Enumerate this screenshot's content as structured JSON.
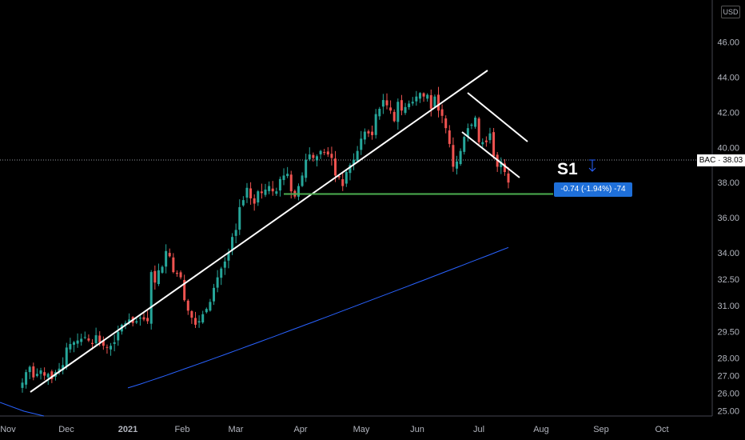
{
  "chart_data": {
    "type": "candlestick",
    "symbol": "BAC",
    "currency": "USD",
    "last_price": 38.03,
    "price_label": "BAC · 38.03",
    "change_label": "-0.74 (-1.94%) -74",
    "support_label": "S1",
    "support_level": 37.35,
    "ylim": [
      25.0,
      48.0
    ],
    "y_ticks": [
      "46.00",
      "44.00",
      "42.00",
      "40.00",
      "38.00",
      "36.00",
      "34.00",
      "32.50",
      "31.00",
      "29.50",
      "28.00",
      "27.00",
      "26.00",
      "25.00"
    ],
    "x_ticks": [
      "Nov",
      "Dec",
      "2021",
      "Feb",
      "Mar",
      "Apr",
      "May",
      "Jun",
      "Jul",
      "Aug",
      "Sep",
      "Oct"
    ],
    "colors": {
      "up": "#26a69a",
      "down": "#ef5350",
      "moving_average": "#2962ff",
      "support_line": "#4caf50",
      "trend_lines": "#ffffff"
    },
    "closes": [
      26.6,
      27.2,
      27.5,
      26.9,
      27.1,
      27.3,
      27.0,
      27.1,
      26.8,
      27.2,
      27.4,
      27.6,
      28.6,
      28.8,
      28.9,
      29.0,
      29.1,
      29.2,
      29.0,
      28.8,
      29.3,
      28.9,
      28.7,
      28.6,
      28.7,
      28.9,
      29.5,
      29.9,
      30.0,
      30.2,
      30.0,
      30.1,
      30.3,
      30.2,
      30.1,
      32.9,
      32.3,
      33.0,
      33.2,
      34.1,
      33.8,
      32.9,
      32.8,
      32.6,
      31.3,
      30.7,
      30.3,
      29.9,
      30.1,
      30.5,
      30.8,
      31.2,
      32.0,
      32.6,
      33.1,
      33.5,
      34.0,
      34.9,
      35.3,
      36.6,
      37.0,
      37.7,
      37.1,
      36.8,
      37.5,
      37.4,
      37.6,
      37.8,
      37.5,
      37.5,
      38.2,
      38.4,
      38.5,
      37.5,
      37.2,
      37.8,
      38.4,
      39.3,
      39.6,
      39.4,
      39.5,
      39.8,
      39.7,
      39.6,
      39.4,
      38.4,
      38.3,
      37.8,
      38.6,
      39.0,
      39.3,
      39.8,
      40.5,
      40.9,
      40.8,
      40.7,
      41.9,
      42.2,
      42.7,
      42.4,
      42.1,
      41.5,
      42.6,
      42.1,
      42.3,
      42.5,
      42.6,
      42.9,
      43.1,
      42.9,
      43.0,
      42.2,
      42.9,
      42.1,
      41.8,
      41.1,
      40.2,
      38.9,
      39.2,
      39.8,
      40.6,
      41.1,
      41.3,
      41.7,
      40.3,
      40.3,
      40.3,
      40.8,
      39.5,
      38.9,
      39.2,
      38.6,
      38.0
    ],
    "moving_average_start": 26.3,
    "moving_average_end": 34.3
  }
}
